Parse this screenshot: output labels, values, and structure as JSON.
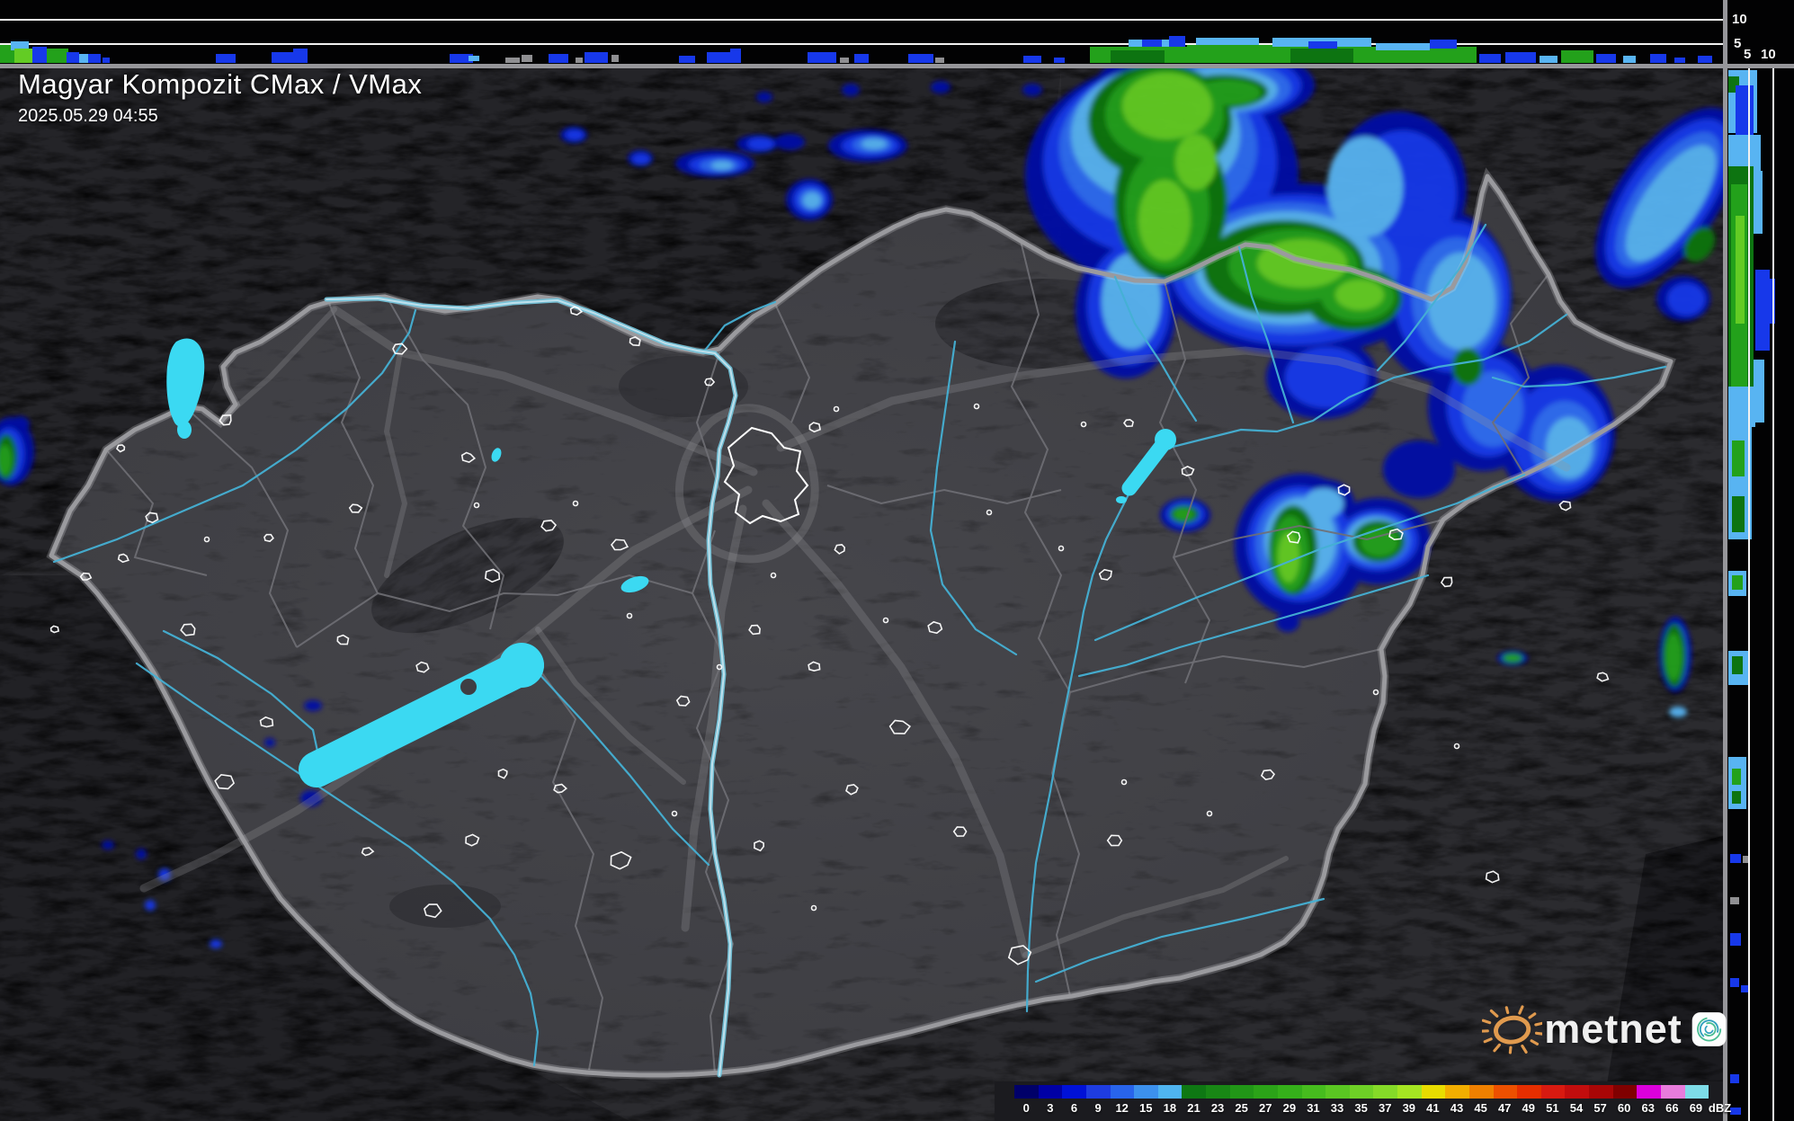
{
  "header": {
    "title": "Magyar Kompozit CMax / VMax",
    "datetime": "2025.05.29 04:55"
  },
  "panels": {
    "top_cross_section": {
      "height_ticks": [
        "10",
        "5"
      ]
    },
    "right_cross_section": {
      "height_ticks": [
        "5",
        "10"
      ]
    }
  },
  "legend": {
    "unit": "dBZ",
    "stops": [
      {
        "value": "0",
        "color": "#000069"
      },
      {
        "value": "3",
        "color": "#0000A5"
      },
      {
        "value": "6",
        "color": "#0011D7"
      },
      {
        "value": "9",
        "color": "#1E3CE1"
      },
      {
        "value": "12",
        "color": "#2864EB"
      },
      {
        "value": "15",
        "color": "#3C91EE"
      },
      {
        "value": "18",
        "color": "#4FB4F0"
      },
      {
        "value": "21",
        "color": "#0E7813"
      },
      {
        "value": "23",
        "color": "#188715"
      },
      {
        "value": "25",
        "color": "#219617"
      },
      {
        "value": "27",
        "color": "#2BA318"
      },
      {
        "value": "29",
        "color": "#35B01A"
      },
      {
        "value": "31",
        "color": "#46BC1E"
      },
      {
        "value": "33",
        "color": "#5AC622"
      },
      {
        "value": "35",
        "color": "#6ED026"
      },
      {
        "value": "37",
        "color": "#85DA28"
      },
      {
        "value": "39",
        "color": "#A5E522"
      },
      {
        "value": "41",
        "color": "#E8DC00"
      },
      {
        "value": "43",
        "color": "#F2AE00"
      },
      {
        "value": "45",
        "color": "#F08000"
      },
      {
        "value": "47",
        "color": "#ED5000"
      },
      {
        "value": "49",
        "color": "#E62E00"
      },
      {
        "value": "51",
        "color": "#D81A10"
      },
      {
        "value": "54",
        "color": "#C20D0D"
      },
      {
        "value": "57",
        "color": "#A80606"
      },
      {
        "value": "60",
        "color": "#800000"
      },
      {
        "value": "63",
        "color": "#DC00DC"
      },
      {
        "value": "66",
        "color": "#E87CDC"
      },
      {
        "value": "69",
        "color": "#7EDCE8"
      }
    ]
  },
  "branding": {
    "name": "metnet"
  },
  "map_colors": {
    "water": "#3BD9F2",
    "border": "#9A9A9E",
    "river": "#45B0D4"
  }
}
